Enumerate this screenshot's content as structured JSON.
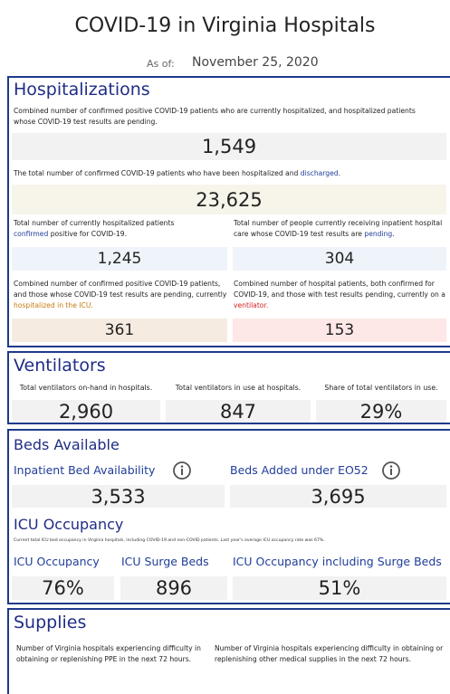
{
  "header": {
    "title": "COVID-19 in Virginia Hospitals",
    "as_of_label": "As of:",
    "date": "November 25, 2020"
  },
  "hospitalizations": {
    "title": "Hospitalizations",
    "current": {
      "desc": "Combined number of confirmed positive COVID-19 patients who are currently hospitalized, and hospitalized patients whose COVID-19 test results are pending.",
      "value": "1,549"
    },
    "total": {
      "desc": [
        "The total number of confirmed COVID-19 patients who have been hospitalized and ",
        "discharged",
        "."
      ],
      "value": "23,625"
    },
    "confirmed": {
      "desc": [
        "Total number of currently hospitalized patients ",
        "confirmed",
        " positive for COVID-19."
      ],
      "value": "1,245"
    },
    "pending": {
      "desc": [
        "Total number of people currently receiving inpatient hospital care whose COVID-19 test results are ",
        "pending",
        "."
      ],
      "value": "304"
    },
    "icu": {
      "desc": [
        "Combined number of confirmed positive COVID-19 patients, and those whose COVID-19 test results are pending, currently ",
        "hospitalized in the ICU",
        "."
      ],
      "value": "361"
    },
    "ventilator": {
      "desc": [
        "Combined number of hospital patients, both confirmed for COVID-19, and those with test results pending, currently on a ",
        "ventilator",
        "."
      ],
      "value": "153"
    }
  },
  "ventilators": {
    "title": "Ventilators",
    "items": [
      {
        "label": "Total ventilators on-hand in hospitals.",
        "value": "2,960"
      },
      {
        "label": "Total ventilators in use at hospitals.",
        "value": "847"
      },
      {
        "label": "Share of total ventilators in use.",
        "value": "29%"
      }
    ]
  },
  "beds": {
    "title": "Beds Available",
    "items": [
      {
        "label": "Inpatient Bed Availability",
        "value": "3,533"
      },
      {
        "label": "Beds Added under EO52",
        "value": "3,695"
      }
    ]
  },
  "icu_occupancy": {
    "title": "ICU Occupancy",
    "note": "Current total ICU bed occupancy in Virginia hospitals, including COVID-19 and non-COVID patients. Last year's average ICU occupancy rate was 67%.",
    "items": [
      {
        "label": "ICU Occupancy",
        "value": "76%"
      },
      {
        "label": "ICU Surge Beds",
        "value": "896"
      },
      {
        "label": "ICU Occupancy including Surge Beds",
        "value": "51%"
      }
    ]
  },
  "supplies": {
    "title": "Supplies",
    "items": [
      "Number of Virginia hospitals experiencing difficulty in obtaining or replenishing PPE in the next 72 hours.",
      "Number of Virginia hospitals experiencing difficulty in obtaining or replenishing other medical supplies in the next 72 hours."
    ]
  }
}
